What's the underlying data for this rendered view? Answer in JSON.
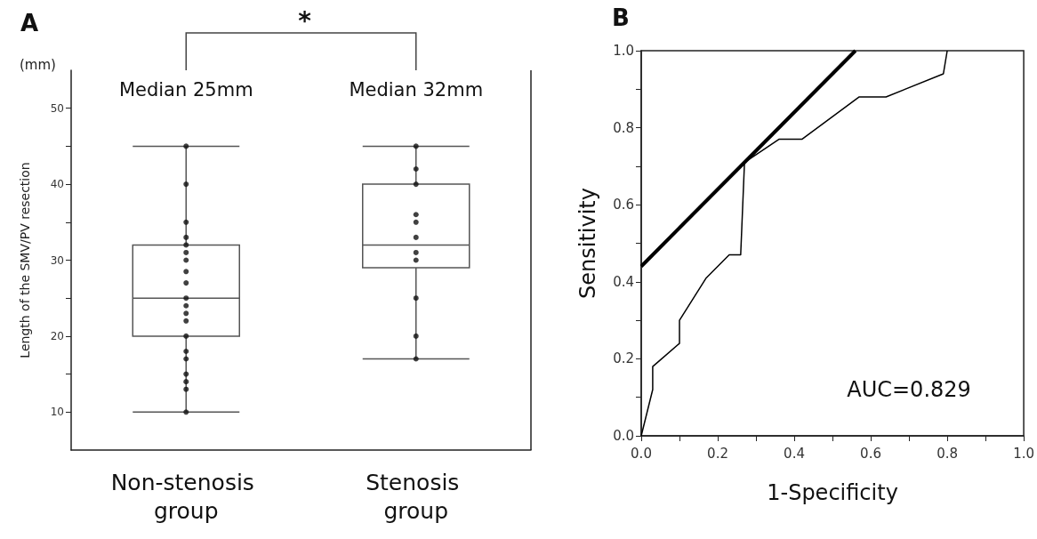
{
  "chart_data": [
    {
      "type": "box",
      "title": "A",
      "ylabel": "Length of the SMV/PV resection",
      "categories": [
        "Non-stenosis group",
        "Stenosis group"
      ],
      "boxes": [
        {
          "low": 10,
          "q1": 20,
          "median": 25,
          "q3": 32,
          "high": 45
        },
        {
          "low": 17,
          "q1": 29,
          "median": 32,
          "q3": 40,
          "high": 45
        }
      ],
      "series": [
        {
          "type": "scatter",
          "color": "#111111",
          "x": [
            "Non-stenosis group",
            "Non-stenosis group",
            "Non-stenosis group",
            "Non-stenosis group",
            "Non-stenosis group",
            "Non-stenosis group",
            "Non-stenosis group",
            "Non-stenosis group",
            "Non-stenosis group",
            "Non-stenosis group",
            "Non-stenosis group",
            "Non-stenosis group",
            "Non-stenosis group",
            "Non-stenosis group",
            "Non-stenosis group",
            "Non-stenosis group",
            "Non-stenosis group",
            "Non-stenosis group",
            "Non-stenosis group",
            "Non-stenosis group",
            "Stenosis group",
            "Stenosis group",
            "Stenosis group",
            "Stenosis group",
            "Stenosis group",
            "Stenosis group",
            "Stenosis group",
            "Stenosis group",
            "Stenosis group",
            "Stenosis group",
            "Stenosis group"
          ],
          "values": [
            45,
            40,
            35,
            33,
            32,
            31,
            30,
            28.5,
            27,
            25,
            24,
            23,
            22,
            20,
            18,
            17,
            15,
            14,
            13,
            10,
            45,
            42,
            40,
            36,
            35,
            33,
            31,
            30,
            25,
            20,
            17
          ]
        }
      ],
      "ylim": [
        5,
        55
      ],
      "yticks": [
        10,
        {
          "value": 15,
          "label": null
        },
        20,
        {
          "value": 25,
          "label": null
        },
        30,
        {
          "value": 35,
          "label": null
        },
        40,
        {
          "value": 45,
          "label": null
        },
        50
      ],
      "marker": "circle",
      "grid": false,
      "annotations": [
        "(mm)",
        "Median 25mm",
        "Median 32mm",
        "*"
      ]
    },
    {
      "type": "line",
      "title": "B",
      "xlabel": "1-Specificity",
      "ylabel": "Sensitivity",
      "series": [
        {
          "color": "#000000",
          "x": [
            0,
            0.03,
            0.03,
            0.1,
            0.1,
            0.17,
            0.23,
            0.26,
            0.27,
            0.36,
            0.42,
            0.57,
            0.64,
            0.79,
            0.8
          ],
          "values": [
            0,
            0.12,
            0.18,
            0.24,
            0.3,
            0.41,
            0.47,
            0.47,
            0.71,
            0.77,
            0.77,
            0.88,
            0.88,
            0.94,
            1.0
          ]
        },
        {
          "color": "#000000",
          "x": [
            0,
            0.56
          ],
          "values": [
            0.44,
            1.0
          ]
        }
      ],
      "xlim": [
        0,
        1
      ],
      "xticks": [
        {
          "value": 0,
          "label": "0.0"
        },
        {
          "value": 0.1,
          "label": null
        },
        0.2,
        {
          "value": 0.3,
          "label": null
        },
        0.4,
        {
          "value": 0.5,
          "label": null
        },
        0.6,
        {
          "value": 0.7,
          "label": null
        },
        0.8,
        {
          "value": 0.9,
          "label": null
        },
        {
          "value": 1,
          "label": "1.0"
        }
      ],
      "ylim": [
        0,
        1
      ],
      "yticks": [
        {
          "value": 0,
          "label": "0.0"
        },
        {
          "value": 0.1,
          "label": null
        },
        0.2,
        {
          "value": 0.3,
          "label": null
        },
        0.4,
        {
          "value": 0.5,
          "label": null
        },
        0.6,
        {
          "value": 0.7,
          "label": null
        },
        0.8,
        {
          "value": 0.9,
          "label": null
        },
        {
          "value": 1,
          "label": "1.0"
        }
      ],
      "marker": "none",
      "line_style": "solid",
      "grid": false,
      "annotations": [
        "AUC=0.829"
      ]
    }
  ]
}
